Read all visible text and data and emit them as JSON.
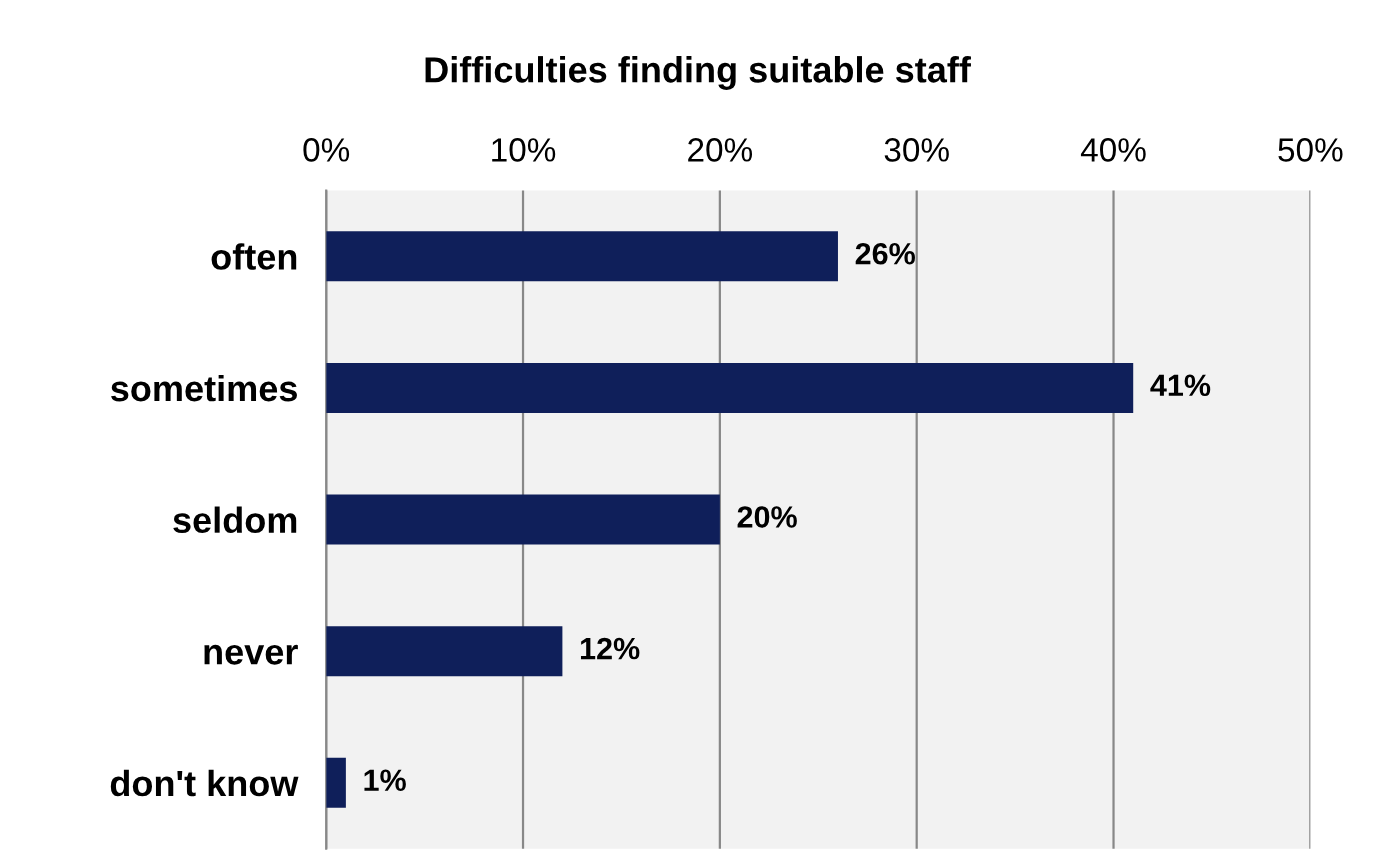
{
  "chart_data": {
    "type": "bar",
    "orientation": "horizontal",
    "title": "Difficulties finding suitable staff",
    "categories": [
      "often",
      "sometimes",
      "seldom",
      "never",
      "don't know"
    ],
    "values": [
      26,
      41,
      20,
      12,
      1
    ],
    "color": "#0f1f5a",
    "xlim": [
      0,
      50
    ],
    "xticks": [
      {
        "value": 0,
        "label": "0%"
      },
      {
        "value": 10,
        "label": "10%"
      },
      {
        "value": 20,
        "label": "20%"
      },
      {
        "value": 30,
        "label": "30%"
      },
      {
        "value": 40,
        "label": "40%"
      },
      {
        "value": 50,
        "label": "50%"
      }
    ],
    "value_labels": [
      "26%",
      "41%",
      "20%",
      "12%",
      "1%"
    ],
    "grid": "x"
  }
}
